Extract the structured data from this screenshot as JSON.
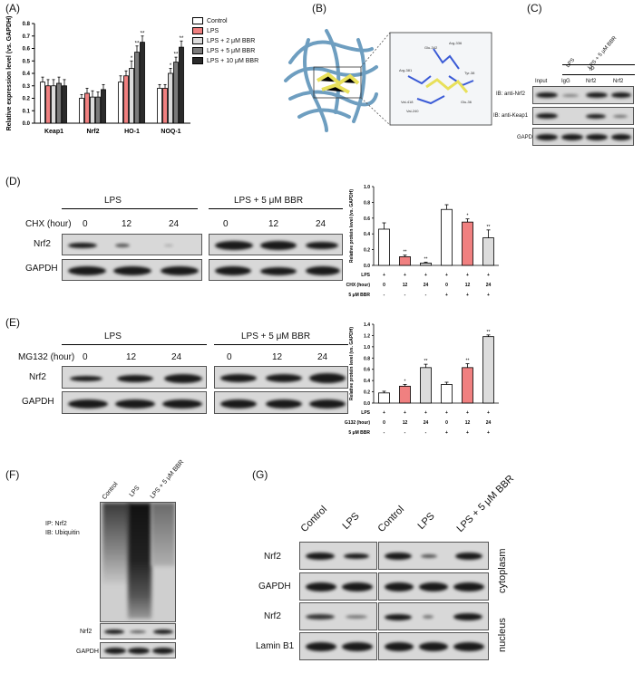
{
  "panels": {
    "A": "(A)",
    "B": "(B)",
    "C": "(C)",
    "D": "(D)",
    "E": "(E)",
    "F": "(F)",
    "G": "(G)"
  },
  "colors": {
    "control": "#ffffff",
    "lps": "#f08080",
    "lps_2": "#dcdcdc",
    "lps_5": "#7a7a7a",
    "lps_10": "#2b2b2b",
    "bar_light": "#e6e6e6"
  },
  "chart_data": [
    {
      "id": "A",
      "type": "bar",
      "ylabel": "Relative expression level (vs. GAPDH)",
      "ylim": [
        0,
        0.8
      ],
      "yticks": [
        "0.0",
        "0.1",
        "0.2",
        "0.3",
        "0.4",
        "0.5",
        "0.6",
        "0.7",
        "0.8"
      ],
      "categories": [
        "Keap1",
        "Nrf2",
        "HO-1",
        "NOQ-1"
      ],
      "series": [
        {
          "name": "Control",
          "values": [
            0.33,
            0.2,
            0.33,
            0.28
          ],
          "err": [
            0.04,
            0.03,
            0.05,
            0.03
          ]
        },
        {
          "name": "LPS",
          "values": [
            0.3,
            0.24,
            0.38,
            0.28
          ],
          "err": [
            0.05,
            0.04,
            0.04,
            0.03
          ]
        },
        {
          "name": "LPS + 2 μM BBR",
          "values": [
            0.3,
            0.21,
            0.44,
            0.4
          ],
          "err": [
            0.05,
            0.05,
            0.06,
            0.04
          ]
        },
        {
          "name": "LPS + 5 μM BBR",
          "values": [
            0.32,
            0.21,
            0.57,
            0.49
          ],
          "err": [
            0.05,
            0.04,
            0.05,
            0.04
          ]
        },
        {
          "name": "LPS + 10 μM BBR",
          "values": [
            0.3,
            0.27,
            0.65,
            0.61
          ],
          "err": [
            0.05,
            0.04,
            0.05,
            0.05
          ]
        }
      ],
      "annotations": [
        {
          "category": "HO-1",
          "series": 2,
          "text": "*"
        },
        {
          "category": "HO-1",
          "series": 3,
          "text": "**"
        },
        {
          "category": "HO-1",
          "series": 4,
          "text": "**"
        },
        {
          "category": "NOQ-1",
          "series": 2,
          "text": "*"
        },
        {
          "category": "NOQ-1",
          "series": 3,
          "text": "**"
        },
        {
          "category": "NOQ-1",
          "series": 4,
          "text": "**"
        }
      ]
    },
    {
      "id": "D",
      "type": "bar",
      "ylabel": "Relative protein level (vs. GAPDH)",
      "ylim": [
        0,
        1.0
      ],
      "yticks": [
        "0.0",
        "0.2",
        "0.4",
        "0.6",
        "0.8",
        "1.0"
      ],
      "values": [
        0.46,
        0.11,
        0.03,
        0.71,
        0.55,
        0.35
      ],
      "err": [
        0.08,
        0.02,
        0.01,
        0.06,
        0.04,
        0.1
      ],
      "marks": [
        "",
        "**",
        "**",
        "",
        "*",
        "**"
      ],
      "bar_colors": [
        "#ffffff",
        "#f08080",
        "#dcdcdc",
        "#ffffff",
        "#f08080",
        "#dcdcdc"
      ],
      "rows": [
        {
          "label": "LPS",
          "cells": [
            "+",
            "+",
            "+",
            "+",
            "+",
            "+"
          ]
        },
        {
          "label": "CHX (hour)",
          "cells": [
            "0",
            "12",
            "24",
            "0",
            "12",
            "24"
          ]
        },
        {
          "label": "5 μM BBR",
          "cells": [
            "-",
            "-",
            "-",
            "+",
            "+",
            "+"
          ]
        }
      ]
    },
    {
      "id": "E",
      "type": "bar",
      "ylabel": "Relative protein level (vs. GAPDH)",
      "ylim": [
        0,
        1.4
      ],
      "yticks": [
        "0.0",
        "0.2",
        "0.4",
        "0.6",
        "0.8",
        "1.0",
        "1.2",
        "1.4"
      ],
      "values": [
        0.18,
        0.3,
        0.63,
        0.33,
        0.63,
        1.18
      ],
      "err": [
        0.03,
        0.03,
        0.06,
        0.04,
        0.07,
        0.03
      ],
      "marks": [
        "",
        "*",
        "**",
        "",
        "**",
        "**"
      ],
      "bar_colors": [
        "#ffffff",
        "#f08080",
        "#dcdcdc",
        "#ffffff",
        "#f08080",
        "#dcdcdc"
      ],
      "rows": [
        {
          "label": "LPS",
          "cells": [
            "+",
            "+",
            "+",
            "+",
            "+",
            "+"
          ]
        },
        {
          "label": "MG132 (hour)",
          "cells": [
            "0",
            "12",
            "24",
            "0",
            "12",
            "24"
          ]
        },
        {
          "label": "5 μM BBR",
          "cells": [
            "-",
            "-",
            "-",
            "+",
            "+",
            "+"
          ]
        }
      ]
    }
  ],
  "panelB": {
    "residues": [
      "Glu-342",
      "Arg-381",
      "Arg-336",
      "Val-418",
      "Val-240",
      "Tyr-38",
      "Glu-36"
    ]
  },
  "panelC": {
    "lanes_top": [
      "LPS",
      "LPS + 5 μM BBR"
    ],
    "ip": "IP",
    "lanes": [
      "Input",
      "IgG",
      "Nrf2",
      "Nrf2"
    ],
    "rows": [
      "IB: anti-Nrf2",
      "IB: anti-Keap1",
      "GAPDH"
    ]
  },
  "panelD": {
    "group1": "LPS",
    "group2": "LPS + 5 μM BBR",
    "time_label": "CHX (hour)",
    "times": [
      "0",
      "12",
      "24",
      "0",
      "12",
      "24"
    ],
    "rows": [
      "Nrf2",
      "GAPDH"
    ]
  },
  "panelE": {
    "group1": "LPS",
    "group2": "LPS + 5 μM BBR",
    "time_label": "MG132 (hour)",
    "times": [
      "0",
      "12",
      "24",
      "0",
      "12",
      "24"
    ],
    "rows": [
      "Nrf2",
      "GAPDH"
    ]
  },
  "panelF": {
    "lanes": [
      "Control",
      "LPS",
      "LPS + 5 μM BBR"
    ],
    "ip": "IP: Nrf2",
    "ib": "IB: Ubiquitin",
    "rows": [
      "Nrf2",
      "GAPDH"
    ]
  },
  "panelG": {
    "lanes": [
      "Control",
      "LPS",
      "Control",
      "LPS",
      "LPS + 5 μM BBR"
    ],
    "rows": [
      "Nrf2",
      "GAPDH",
      "Nrf2",
      "Lamin B1"
    ],
    "side": [
      "cytoplasm",
      "nucleus"
    ]
  }
}
